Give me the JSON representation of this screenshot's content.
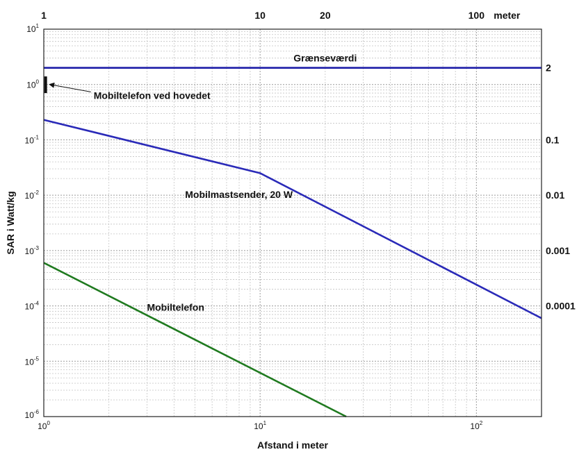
{
  "chart_data": {
    "type": "line",
    "xscale": "log",
    "yscale": "log",
    "xlim": [
      1,
      200
    ],
    "ylim": [
      1e-06,
      10
    ],
    "grid": true,
    "xlabel": "Afstand i meter",
    "ylabel": "SAR i Watt/kg",
    "bottom_tick_labels": [
      {
        "base": "10",
        "exp": "0",
        "value": 1
      },
      {
        "base": "10",
        "exp": "1",
        "value": 10
      },
      {
        "base": "10",
        "exp": "2",
        "value": 100
      }
    ],
    "top_tick_labels": [
      {
        "text": "1",
        "value": 1
      },
      {
        "text": "10",
        "value": 10
      },
      {
        "text": "20",
        "value": 20
      },
      {
        "text": "100",
        "value": 100
      },
      {
        "text": "meter",
        "value": null
      }
    ],
    "left_tick_labels": [
      {
        "base": "10",
        "exp": "1",
        "value": 10
      },
      {
        "base": "10",
        "exp": "0",
        "value": 1
      },
      {
        "base": "10",
        "exp": "-1",
        "value": 0.1
      },
      {
        "base": "10",
        "exp": "-2",
        "value": 0.01
      },
      {
        "base": "10",
        "exp": "-3",
        "value": 0.001
      },
      {
        "base": "10",
        "exp": "-4",
        "value": 0.0001
      },
      {
        "base": "10",
        "exp": "-5",
        "value": 1e-05
      },
      {
        "base": "10",
        "exp": "-6",
        "value": 1e-06
      }
    ],
    "right_tick_labels": [
      {
        "text": "2",
        "value": 2
      },
      {
        "text": "0.1",
        "value": 0.1
      },
      {
        "text": "0.01",
        "value": 0.01
      },
      {
        "text": "0.001",
        "value": 0.001
      },
      {
        "text": "0.0001",
        "value": 0.0001
      }
    ],
    "series": [
      {
        "name": "Grænseværdi",
        "color": "#1c1ca8",
        "x": [
          1,
          200
        ],
        "y": [
          2,
          2
        ]
      },
      {
        "name": "Mobilmastsender, 20 W",
        "color": "#2a2ab8",
        "x": [
          1,
          10,
          200
        ],
        "y": [
          0.23,
          0.025,
          6e-05
        ]
      },
      {
        "name": "Mobiltelefon",
        "color": "#1f7a1f",
        "x": [
          1,
          25
        ],
        "y": [
          0.0006,
          1e-06
        ]
      }
    ],
    "marker": {
      "name": "Mobiltelefon ved hovedet",
      "x": 1.02,
      "y_range": [
        0.7,
        1.4
      ]
    },
    "annotations": [
      {
        "text": "Grænseværdi",
        "x": 20,
        "y": 2.6
      },
      {
        "text": "Mobiltelefon ved hovedet",
        "x": 1.7,
        "y": 0.55,
        "arrow_to": [
          1.07,
          1.0
        ]
      },
      {
        "text": "Mobilmastsender, 20 W",
        "x": 4.5,
        "y": 0.009
      },
      {
        "text": "Mobiltelefon",
        "x": 3.0,
        "y": 8.2e-05
      }
    ]
  }
}
